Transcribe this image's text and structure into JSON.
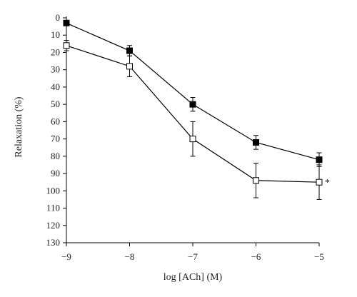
{
  "chart_data": {
    "type": "line",
    "title": "",
    "xlabel": "log [ACh] (M)",
    "ylabel": "Relaxation (%)",
    "xlim": [
      -9,
      -5
    ],
    "ylim": [
      0,
      130
    ],
    "y_inverted": true,
    "grid": false,
    "legend": "none",
    "x_ticks": [
      -9,
      -8,
      -7,
      -6,
      -5
    ],
    "x_tick_labels": [
      "−9",
      "−8",
      "−7",
      "−6",
      "−5"
    ],
    "y_ticks": [
      0,
      10,
      20,
      30,
      40,
      50,
      60,
      70,
      80,
      90,
      100,
      110,
      120,
      130
    ],
    "y_tick_labels": [
      "0",
      "10",
      "20",
      "30",
      "40",
      "50",
      "60",
      "70",
      "80",
      "90",
      "100",
      "110",
      "120",
      "130"
    ],
    "series": [
      {
        "marker": "filled-square",
        "color": "#000000",
        "x": [
          -9,
          -8,
          -7,
          -6,
          -5
        ],
        "y": [
          3,
          19,
          50,
          72,
          82
        ],
        "error": [
          0,
          3,
          4,
          4,
          4
        ]
      },
      {
        "marker": "open-square",
        "color": "#000000",
        "x": [
          -9,
          -8,
          -7,
          -6,
          -5
        ],
        "y": [
          16,
          28,
          70,
          94,
          95
        ],
        "error": [
          3,
          6,
          10,
          10,
          10
        ]
      }
    ],
    "annotations": [
      {
        "text": "*",
        "x": -5,
        "y": 95
      }
    ]
  }
}
